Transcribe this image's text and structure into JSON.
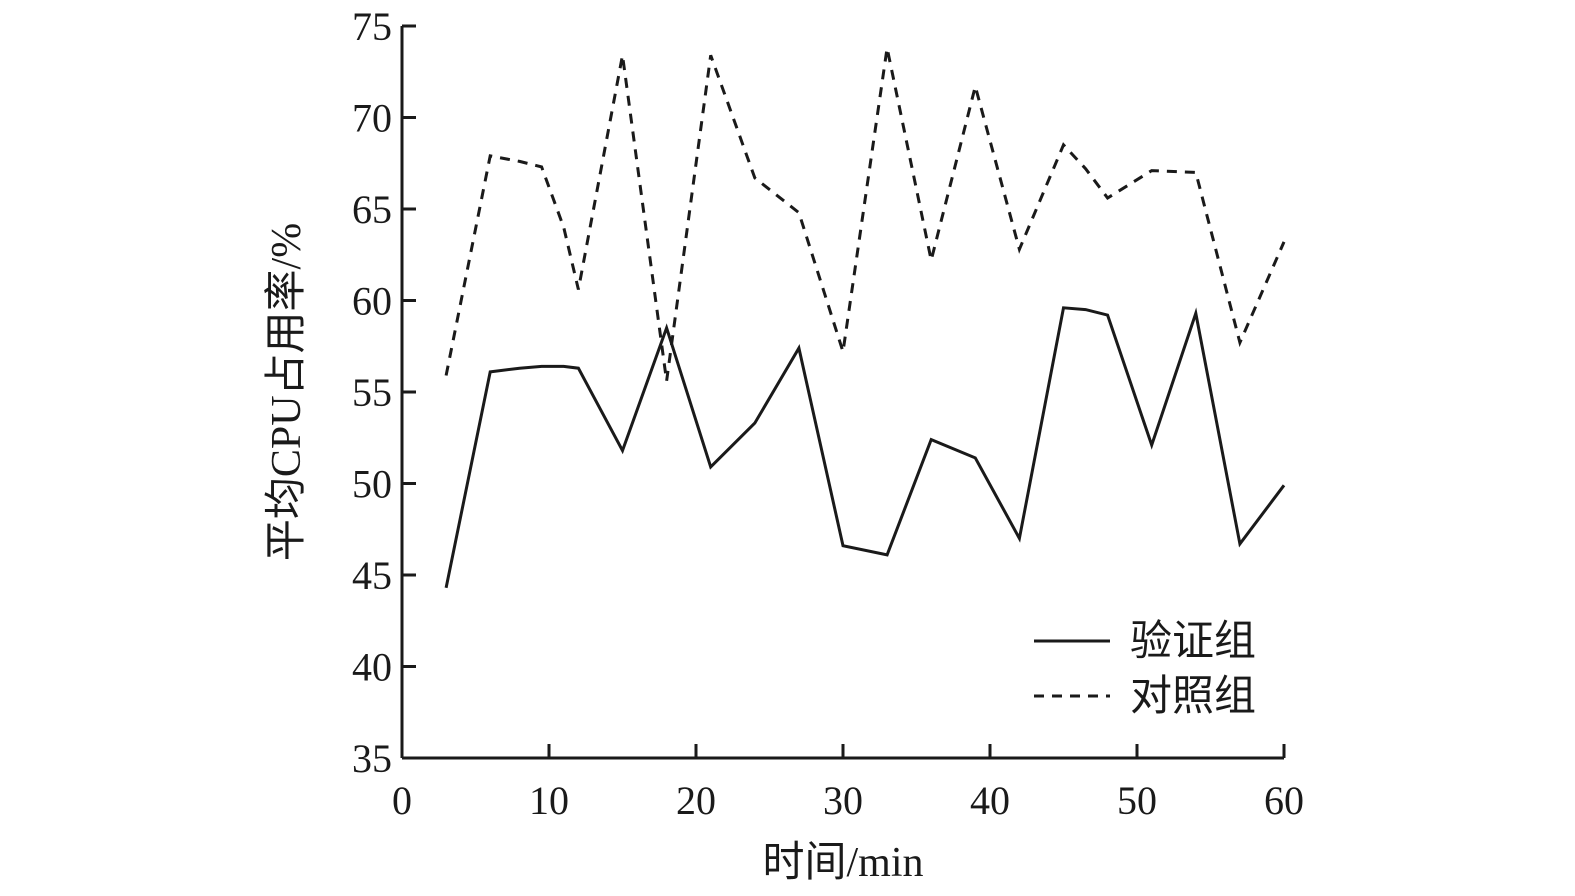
{
  "chart_data": {
    "type": "line",
    "xlabel": "时间/min",
    "ylabel": "平均CPU占用率/%",
    "xlim": [
      0,
      60
    ],
    "ylim": [
      35,
      75
    ],
    "xticks": [
      0,
      10,
      20,
      30,
      40,
      50,
      60
    ],
    "yticks": [
      35,
      40,
      45,
      50,
      55,
      60,
      65,
      70,
      75
    ],
    "grid": false,
    "legend_position": "bottom-right",
    "x": [
      3,
      6,
      8,
      9.5,
      11,
      12,
      15,
      18,
      21,
      24,
      27,
      30,
      33,
      36,
      39,
      42,
      45,
      46.5,
      48,
      51,
      54,
      57,
      60
    ],
    "series": [
      {
        "name": "验证组",
        "style": "solid",
        "color": "#1a1a1a",
        "values": [
          44.3,
          56.1,
          56.3,
          56.4,
          56.4,
          56.3,
          51.8,
          58.5,
          50.9,
          53.3,
          57.4,
          46.6,
          46.1,
          52.4,
          51.4,
          47.0,
          59.6,
          59.5,
          59.2,
          52.1,
          59.3,
          46.7,
          49.9
        ]
      },
      {
        "name": "对照组",
        "style": "dashed",
        "color": "#1a1a1a",
        "values": [
          55.9,
          67.9,
          67.6,
          67.3,
          64.0,
          60.6,
          73.4,
          55.6,
          73.4,
          66.7,
          64.8,
          57.2,
          73.8,
          62.2,
          71.7,
          62.8,
          68.5,
          67.2,
          65.6,
          67.1,
          67.0,
          57.7,
          63.2
        ]
      }
    ]
  }
}
